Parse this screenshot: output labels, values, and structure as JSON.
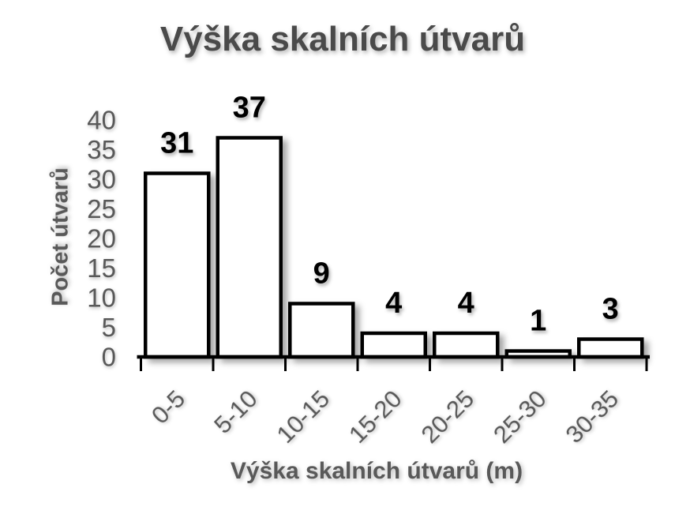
{
  "chart_data": {
    "type": "bar",
    "title": "Výška skalních útvarů",
    "xlabel": "Výška skalních útvarů (m)",
    "ylabel": "Počet útvarů",
    "categories": [
      "0-5",
      "5-10",
      "10-15",
      "15-20",
      "20-25",
      "25-30",
      "30-35"
    ],
    "values": [
      31,
      37,
      9,
      4,
      4,
      1,
      3
    ],
    "yticks": [
      0,
      5,
      10,
      15,
      20,
      25,
      30,
      35,
      40
    ],
    "ylim": [
      0,
      40
    ],
    "grid": false,
    "legend": "none",
    "x_tick_label_rotation_deg": -45,
    "colors": {
      "bar_fill": "#ffffff",
      "bar_border": "#000000",
      "axis_line": "#000000",
      "title_text": "#4a4a4a",
      "axis_text": "#595959",
      "value_label_text": "#000000"
    }
  }
}
